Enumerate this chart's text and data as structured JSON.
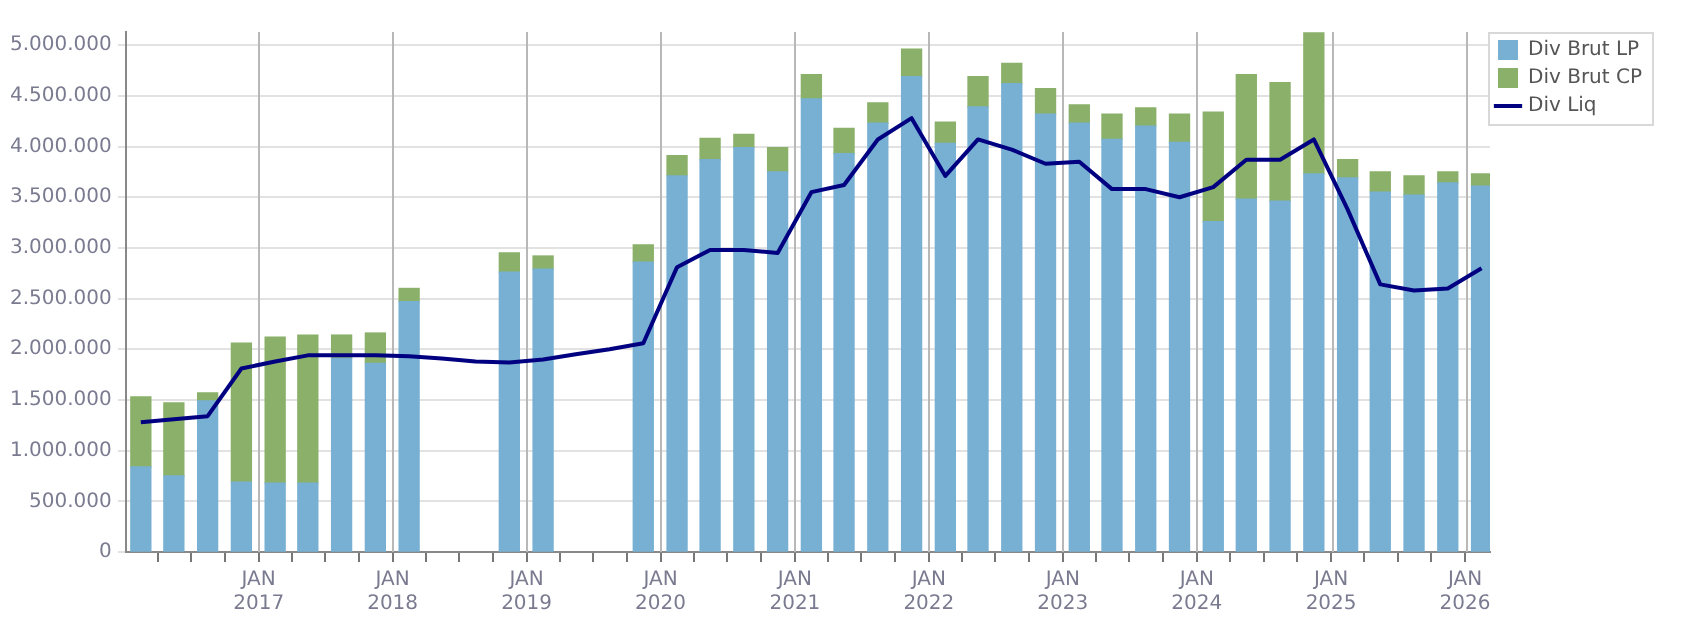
{
  "chart_data": {
    "type": "bar",
    "stacked": true,
    "grid": true,
    "legend": "top right",
    "x": [
      "2016-02-15",
      "2016-05-15",
      "2016-08-15",
      "2016-11-15",
      "2017-02-15",
      "2017-05-15",
      "2017-08-15",
      "2017-11-15",
      "2018-02-15",
      "2018-05-15",
      "2018-08-15",
      "2018-11-15",
      "2019-02-15",
      "2019-05-15",
      "2019-08-15",
      "2019-11-15",
      "2020-02-15",
      "2020-05-15",
      "2020-08-15",
      "2020-11-15",
      "2021-02-15",
      "2021-05-15",
      "2021-08-15",
      "2021-11-15",
      "2022-02-15",
      "2022-05-15",
      "2022-08-15",
      "2022-11-15",
      "2023-02-15",
      "2023-05-15",
      "2023-08-15",
      "2023-11-15",
      "2024-02-15",
      "2024-05-15",
      "2024-08-15",
      "2024-11-15",
      "2025-02-15",
      "2025-05-15",
      "2025-08-15",
      "2025-11-15",
      "2026-02-15"
    ],
    "series": [
      {
        "name": "Div Brut LP",
        "color": "#77b0d2",
        "values": [
          840000,
          750000,
          1490000,
          690000,
          680000,
          680000,
          1910000,
          1860000,
          2470000,
          null,
          null,
          2760000,
          2790000,
          null,
          null,
          2860000,
          3710000,
          3870000,
          3990000,
          3750000,
          4470000,
          3930000,
          4230000,
          4690000,
          4030000,
          4390000,
          4620000,
          4320000,
          4230000,
          4070000,
          4200000,
          4040000,
          3260000,
          3480000,
          3460000,
          3730000,
          3690000,
          3550000,
          3520000,
          3640000,
          3610000
        ]
      },
      {
        "name": "Div Brut CP",
        "color": "#8ab06a",
        "values": [
          690000,
          720000,
          80000,
          1370000,
          1440000,
          1460000,
          230000,
          300000,
          130000,
          null,
          null,
          190000,
          130000,
          null,
          null,
          170000,
          200000,
          210000,
          130000,
          240000,
          240000,
          250000,
          200000,
          270000,
          210000,
          300000,
          200000,
          250000,
          180000,
          250000,
          180000,
          280000,
          1080000,
          1230000,
          1170000,
          1390000,
          180000,
          200000,
          190000,
          110000,
          120000
        ]
      },
      {
        "name": "Div Liq",
        "type": "line",
        "color": "#000080",
        "marker": "none",
        "line_style": "solid",
        "values": [
          1280000,
          1310000,
          1340000,
          1810000,
          1880000,
          1940000,
          1940000,
          1940000,
          1930000,
          1910000,
          1880000,
          1870000,
          1900000,
          1950000,
          2000000,
          2060000,
          2810000,
          2980000,
          2980000,
          2950000,
          3550000,
          3620000,
          4070000,
          4280000,
          3710000,
          4070000,
          3970000,
          3830000,
          3850000,
          3580000,
          3580000,
          3500000,
          3600000,
          3870000,
          3870000,
          4070000,
          3380000,
          2640000,
          2580000,
          2600000,
          2800000
        ]
      }
    ],
    "xlim": [
      "2016-01-05",
      "2026-03-10"
    ],
    "xticks": [
      {
        "value": "2016-04-01",
        "label": null
      },
      {
        "value": "2016-07-01",
        "label": null
      },
      {
        "value": "2016-10-01",
        "label": null
      },
      {
        "value": "2017-01-01",
        "label": "JAN 2017"
      },
      {
        "value": "2017-04-01",
        "label": null
      },
      {
        "value": "2017-07-01",
        "label": null
      },
      {
        "value": "2017-10-01",
        "label": null
      },
      {
        "value": "2018-01-01",
        "label": "JAN 2018"
      },
      {
        "value": "2018-04-01",
        "label": null
      },
      {
        "value": "2018-07-01",
        "label": null
      },
      {
        "value": "2018-10-01",
        "label": null
      },
      {
        "value": "2019-01-01",
        "label": "JAN 2019"
      },
      {
        "value": "2019-04-01",
        "label": null
      },
      {
        "value": "2019-07-01",
        "label": null
      },
      {
        "value": "2019-10-01",
        "label": null
      },
      {
        "value": "2020-01-01",
        "label": "JAN 2020"
      },
      {
        "value": "2020-04-01",
        "label": null
      },
      {
        "value": "2020-07-01",
        "label": null
      },
      {
        "value": "2020-10-01",
        "label": null
      },
      {
        "value": "2021-01-01",
        "label": "JAN 2021"
      },
      {
        "value": "2021-04-01",
        "label": null
      },
      {
        "value": "2021-07-01",
        "label": null
      },
      {
        "value": "2021-10-01",
        "label": null
      },
      {
        "value": "2022-01-01",
        "label": "JAN 2022"
      },
      {
        "value": "2022-04-01",
        "label": null
      },
      {
        "value": "2022-07-01",
        "label": null
      },
      {
        "value": "2022-10-01",
        "label": null
      },
      {
        "value": "2023-01-01",
        "label": "JAN 2023"
      },
      {
        "value": "2023-04-01",
        "label": null
      },
      {
        "value": "2023-07-01",
        "label": null
      },
      {
        "value": "2023-10-01",
        "label": null
      },
      {
        "value": "2024-01-01",
        "label": "JAN 2024"
      },
      {
        "value": "2024-04-01",
        "label": null
      },
      {
        "value": "2024-07-01",
        "label": null
      },
      {
        "value": "2024-10-01",
        "label": null
      },
      {
        "value": "2025-01-01",
        "label": "JAN 2025"
      },
      {
        "value": "2025-04-01",
        "label": null
      },
      {
        "value": "2025-07-01",
        "label": null
      },
      {
        "value": "2025-10-01",
        "label": null
      },
      {
        "value": "2026-01-01",
        "label": "JAN 2026"
      }
    ],
    "ylim": [
      0,
      5130000
    ],
    "yticks": [
      0,
      {
        "value": 500000,
        "label": "500.000"
      },
      {
        "value": 1000000,
        "label": "1.000.000"
      },
      {
        "value": 1500000,
        "label": "1.500.000"
      },
      {
        "value": 2000000,
        "label": "2.000.000"
      },
      {
        "value": 2500000,
        "label": "2.500.000"
      },
      {
        "value": 3000000,
        "label": "3.000.000"
      },
      {
        "value": 3500000,
        "label": "3.500.000"
      },
      {
        "value": 4000000,
        "label": "4.000.000"
      },
      {
        "value": 4500000,
        "label": "4.500.000"
      },
      {
        "value": 5000000,
        "label": "5.000.000"
      }
    ]
  }
}
